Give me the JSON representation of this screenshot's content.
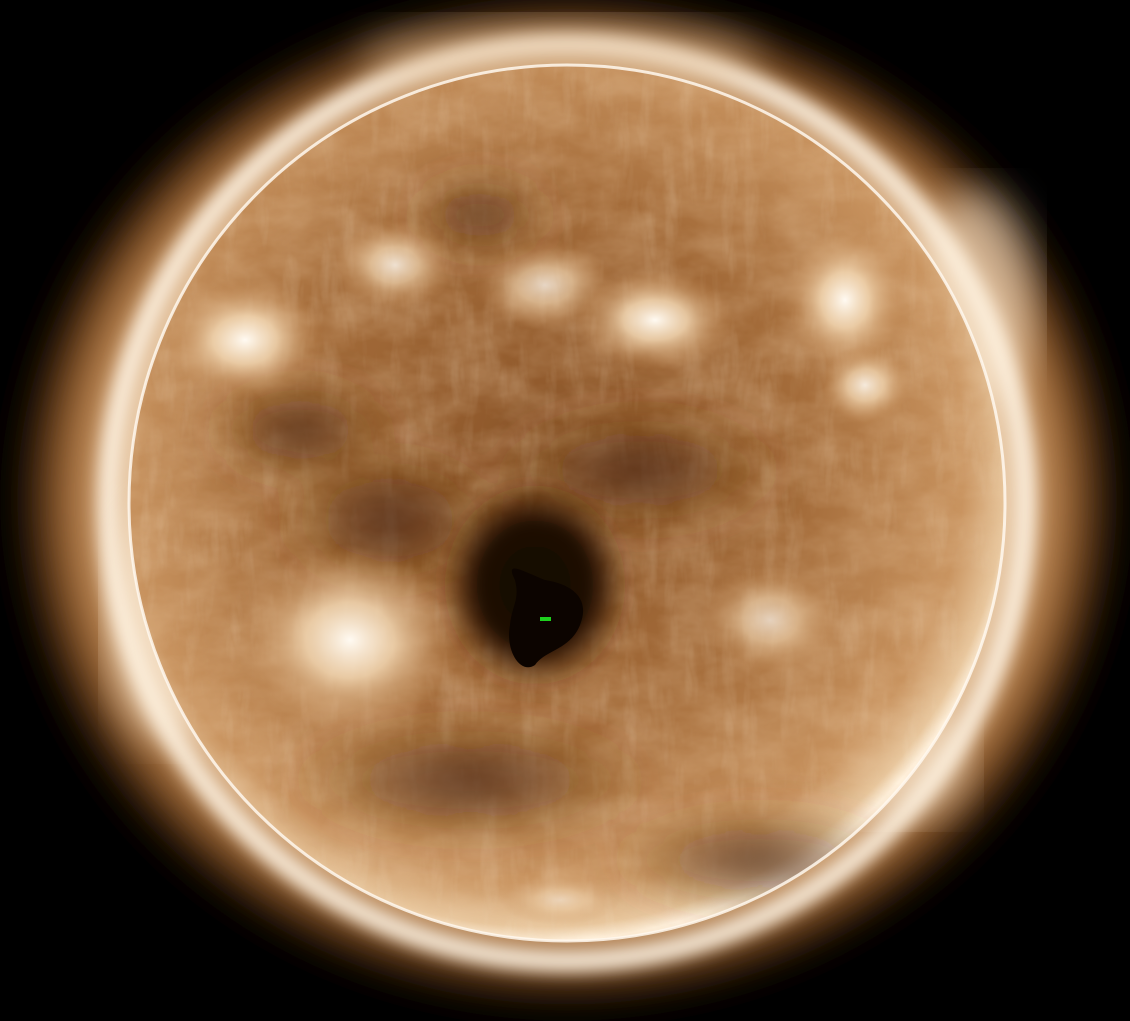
{
  "image": {
    "subject": "solar-disk-euv",
    "colors": {
      "background": "#000000",
      "corona_outer": "#4a2a0e",
      "corona_mid": "#b07a42",
      "corona_inner": "#f1dcc0",
      "limb": "#fff6ea",
      "disk_base": "#a06a3a",
      "disk_dark": "#6e3e18",
      "active_region": "#fff3e2",
      "coronal_hole": "#1a0a02",
      "marker": "#1ed01e"
    }
  }
}
